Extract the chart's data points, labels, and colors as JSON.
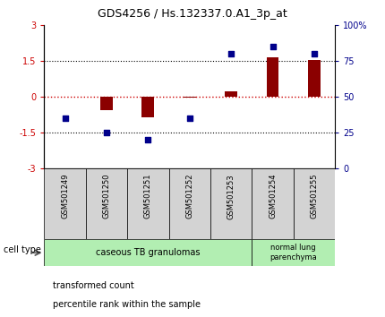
{
  "title": "GDS4256 / Hs.132337.0.A1_3p_at",
  "samples": [
    "GSM501249",
    "GSM501250",
    "GSM501251",
    "GSM501252",
    "GSM501253",
    "GSM501254",
    "GSM501255"
  ],
  "transformed_count": [
    0.0,
    -0.55,
    -0.85,
    -0.05,
    0.22,
    1.65,
    1.55
  ],
  "percentile_rank": [
    35,
    25,
    20,
    35,
    80,
    85,
    80
  ],
  "ylim_left": [
    -3,
    3
  ],
  "ylim_right": [
    0,
    100
  ],
  "bar_color": "#8B0000",
  "dot_color": "#00008B",
  "zero_line_color": "#CC0000",
  "bg_color": "white",
  "label_bg": "#D3D3D3",
  "cell_group1_color": "#B2EEB2",
  "cell_group2_color": "#B2EEB2",
  "cell_group1_label": "caseous TB granulomas",
  "cell_group2_label": "normal lung\nparenchyma",
  "legend_red_label": "transformed count",
  "legend_blue_label": "percentile rank within the sample",
  "cell_type_label": "cell type",
  "yticks_left": [
    -3,
    -1.5,
    0,
    1.5,
    3
  ],
  "yticks_right": [
    0,
    25,
    50,
    75,
    100
  ],
  "ytick_labels_right": [
    "0",
    "25",
    "50",
    "75",
    "100%"
  ],
  "title_fontsize": 9,
  "tick_fontsize": 7,
  "sample_fontsize": 6,
  "legend_fontsize": 7,
  "cell_fontsize": 7,
  "bar_width": 0.3
}
